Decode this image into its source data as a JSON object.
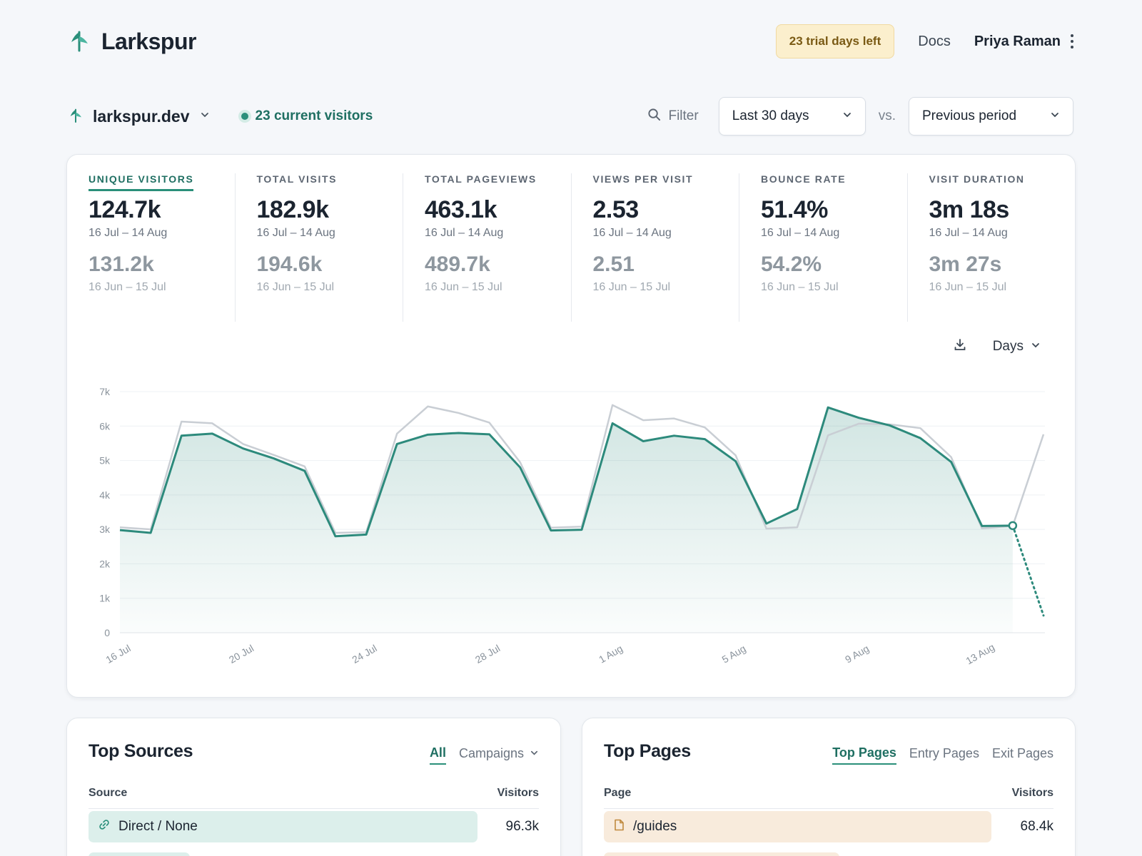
{
  "app": {
    "name": "Larkspur"
  },
  "header": {
    "trial_badge": "23 trial days left",
    "docs": "Docs",
    "user": "Priya Raman"
  },
  "site": {
    "name": "larkspur.dev",
    "live_visitors": "23 current visitors"
  },
  "controls": {
    "filter": "Filter",
    "period": "Last 30 days",
    "vs": "vs.",
    "compare": "Previous period",
    "interval": "Days"
  },
  "metrics": [
    {
      "label": "UNIQUE VISITORS",
      "value": "124.7k",
      "range": "16 Jul – 14 Aug",
      "prev_value": "131.2k",
      "prev_range": "16 Jun – 15 Jul"
    },
    {
      "label": "TOTAL VISITS",
      "value": "182.9k",
      "range": "16 Jul – 14 Aug",
      "prev_value": "194.6k",
      "prev_range": "16 Jun – 15 Jul"
    },
    {
      "label": "TOTAL PAGEVIEWS",
      "value": "463.1k",
      "range": "16 Jul – 14 Aug",
      "prev_value": "489.7k",
      "prev_range": "16 Jun – 15 Jul"
    },
    {
      "label": "VIEWS PER VISIT",
      "value": "2.53",
      "range": "16 Jul – 14 Aug",
      "prev_value": "2.51",
      "prev_range": "16 Jun – 15 Jul"
    },
    {
      "label": "BOUNCE RATE",
      "value": "51.4%",
      "range": "16 Jul – 14 Aug",
      "prev_value": "54.2%",
      "prev_range": "16 Jun – 15 Jul"
    },
    {
      "label": "VISIT DURATION",
      "value": "3m 18s",
      "range": "16 Jul – 14 Aug",
      "prev_value": "3m 27s",
      "prev_range": "16 Jun – 15 Jul"
    }
  ],
  "chart_data": {
    "type": "area",
    "ylim": [
      0,
      7000
    ],
    "yticks": [
      0,
      1000,
      2000,
      3000,
      4000,
      5000,
      6000,
      7000
    ],
    "ytick_labels": [
      "0",
      "1k",
      "2k",
      "3k",
      "4k",
      "5k",
      "6k",
      "7k"
    ],
    "xtick_labels": [
      "16 Jul",
      "20 Jul",
      "24 Jul",
      "28 Jul",
      "1 Aug",
      "5 Aug",
      "9 Aug",
      "13 Aug"
    ],
    "grid": true,
    "series": [
      {
        "values": [
          2980,
          2900,
          5720,
          5780,
          5350,
          5060,
          4700,
          2800,
          2850,
          5480,
          5750,
          5800,
          5760,
          4800,
          2970,
          2990,
          6080,
          5560,
          5720,
          5620,
          4980,
          3170,
          3590,
          6540,
          6240,
          6020,
          5650,
          4960,
          3100,
          3110,
          500
        ],
        "color": "#2d8a7c",
        "note_last_partial": true
      },
      {
        "values": [
          3060,
          3000,
          6130,
          6080,
          5480,
          5160,
          4830,
          2900,
          2920,
          5780,
          6570,
          6380,
          6100,
          4950,
          3050,
          3080,
          6610,
          6170,
          6220,
          5960,
          5150,
          3020,
          3060,
          5730,
          6070,
          6050,
          5940,
          5100,
          3030,
          3100,
          5760
        ],
        "color": "#c9ced4"
      }
    ]
  },
  "top_sources": {
    "title": "Top Sources",
    "tabs": [
      "All",
      "Campaigns"
    ],
    "col_left": "Source",
    "col_right": "Visitors",
    "rows": [
      {
        "label": "Direct / None",
        "value": "96.3k"
      }
    ]
  },
  "top_pages": {
    "title": "Top Pages",
    "tabs": [
      "Top Pages",
      "Entry Pages",
      "Exit Pages"
    ],
    "col_left": "Page",
    "col_right": "Visitors",
    "rows": [
      {
        "label": "/guides",
        "value": "68.4k"
      }
    ]
  }
}
